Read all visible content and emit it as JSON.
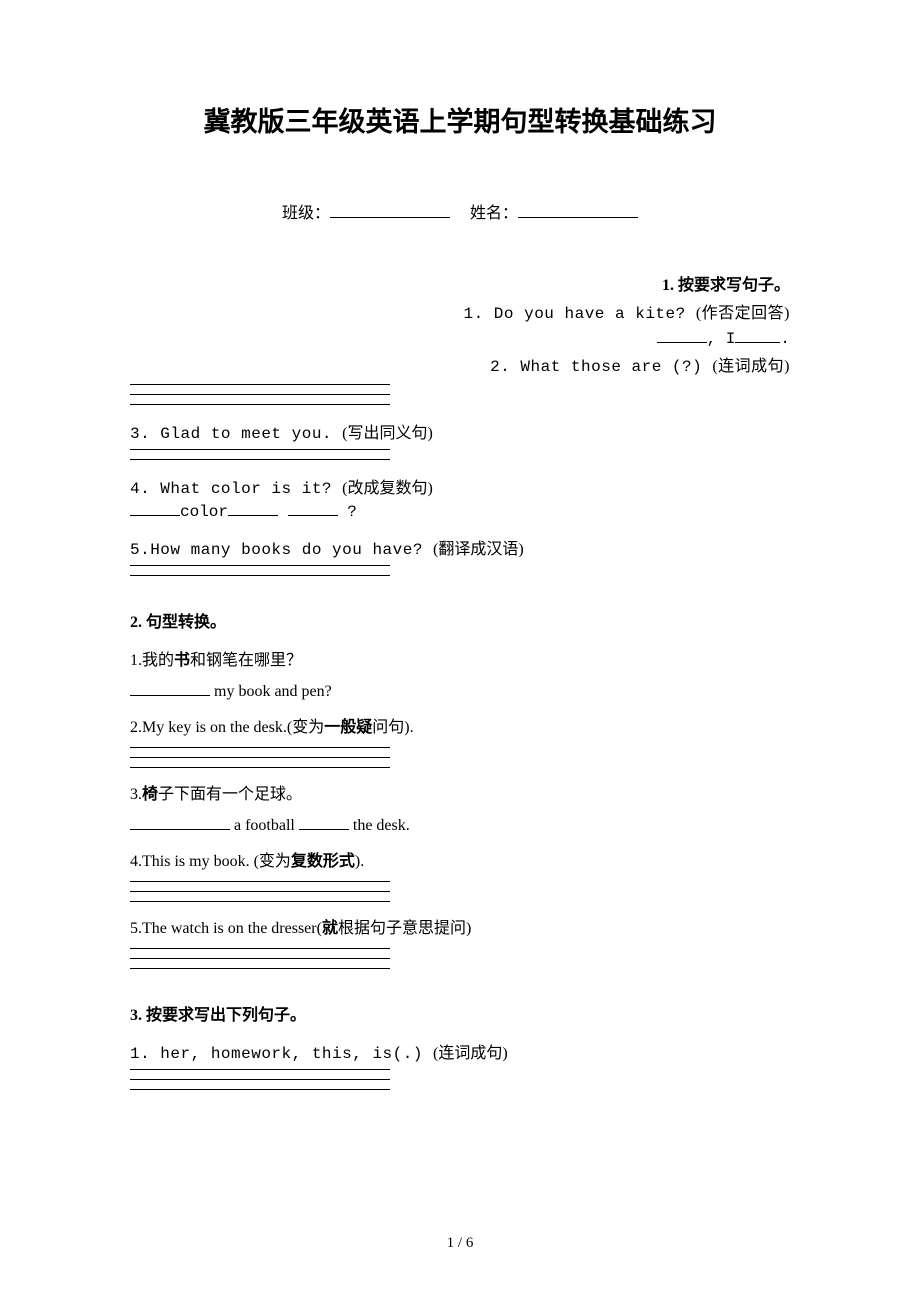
{
  "title": "冀教版三年级英语上学期句型转换基础练习",
  "meta": {
    "class_label": "班级：",
    "name_label": "姓名："
  },
  "section1": {
    "heading": "1. 按要求写句子。",
    "q1": "1. Do you have a kite? (作否定回答)",
    "q1_ans_sep": ", I",
    "q1_ans_end": ".",
    "q2": "2. What those are (?) (连词成句)",
    "q3": "3. Glad to meet you. (写出同义句)",
    "q4": "4. What color is it? (改成复数句)",
    "q4_fill_mid": "color",
    "q4_fill_end": " ?",
    "q5": "5.How many books do you have? (翻译成汉语)"
  },
  "section2": {
    "heading": "2. 句型转换。",
    "q1_cn": "1.我的书和钢笔在哪里？",
    "q1_bold": "书",
    "q1_en": " my book and pen?",
    "q2": "2.My key is on the desk.(",
    "q2_cn": "变为",
    "q2_bold": "一般疑",
    "q2_cn2": "问句).",
    "q3_pre": "3.",
    "q3_bold": "椅",
    "q3_cn": "子下面有一个足球。",
    "q3_en_mid": " a football ",
    "q3_en_end": "  the desk.",
    "q4": "4.This is my book. (",
    "q4_cn": "变为",
    "q4_bold": "复数形式",
    "q4_end": ").",
    "q5": "5.The watch is on the dresser(",
    "q5_bold": "就",
    "q5_cn": "根据句子意思提问)"
  },
  "section3": {
    "heading": "3. 按要求写出下列句子。",
    "q1": "1. her, homework, this, is(.) (连词成句)"
  },
  "page_number": "1 / 6"
}
